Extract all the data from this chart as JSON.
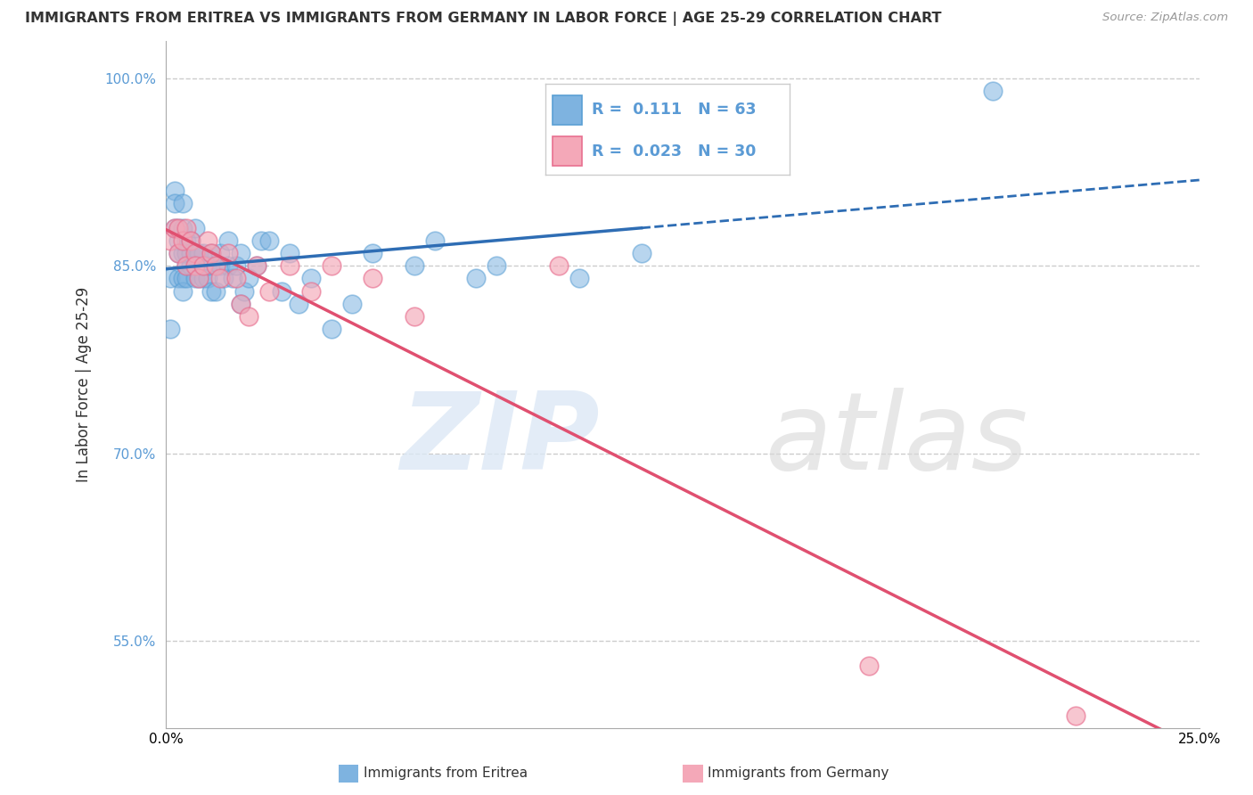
{
  "title": "IMMIGRANTS FROM ERITREA VS IMMIGRANTS FROM GERMANY IN LABOR FORCE | AGE 25-29 CORRELATION CHART",
  "source": "Source: ZipAtlas.com",
  "ylabel": "In Labor Force | Age 25-29",
  "xlim": [
    0.0,
    0.25
  ],
  "ylim": [
    0.48,
    1.03
  ],
  "x_ticks": [
    0.0,
    0.05,
    0.1,
    0.15,
    0.2,
    0.25
  ],
  "x_tick_labels": [
    "0.0%",
    "",
    "",
    "",
    "",
    "25.0%"
  ],
  "y_ticks": [
    0.55,
    0.7,
    0.85,
    1.0
  ],
  "y_tick_labels": [
    "55.0%",
    "70.0%",
    "85.0%",
    "100.0%"
  ],
  "grid_color": "#cccccc",
  "background_color": "#ffffff",
  "eritrea_color": "#7eb3e0",
  "germany_color": "#f4a8b8",
  "eritrea_edge": "#5a9fd4",
  "germany_edge": "#e87090",
  "eritrea_R": 0.111,
  "eritrea_N": 63,
  "germany_R": 0.023,
  "germany_N": 30,
  "eritrea_line_color": "#2e6db4",
  "germany_line_color": "#e05070",
  "eritrea_x": [
    0.001,
    0.001,
    0.002,
    0.002,
    0.002,
    0.003,
    0.003,
    0.003,
    0.003,
    0.004,
    0.004,
    0.004,
    0.004,
    0.004,
    0.005,
    0.005,
    0.005,
    0.005,
    0.006,
    0.006,
    0.006,
    0.007,
    0.007,
    0.007,
    0.007,
    0.008,
    0.008,
    0.009,
    0.009,
    0.01,
    0.01,
    0.011,
    0.011,
    0.012,
    0.012,
    0.013,
    0.013,
    0.014,
    0.015,
    0.015,
    0.016,
    0.017,
    0.018,
    0.018,
    0.019,
    0.02,
    0.022,
    0.023,
    0.025,
    0.028,
    0.03,
    0.032,
    0.035,
    0.04,
    0.045,
    0.05,
    0.06,
    0.065,
    0.075,
    0.08,
    0.1,
    0.115,
    0.2
  ],
  "eritrea_y": [
    0.84,
    0.8,
    0.91,
    0.88,
    0.9,
    0.88,
    0.86,
    0.84,
    0.87,
    0.84,
    0.86,
    0.88,
    0.83,
    0.9,
    0.85,
    0.87,
    0.86,
    0.84,
    0.85,
    0.87,
    0.86,
    0.84,
    0.86,
    0.88,
    0.85,
    0.84,
    0.86,
    0.84,
    0.86,
    0.84,
    0.85,
    0.83,
    0.86,
    0.83,
    0.85,
    0.85,
    0.86,
    0.84,
    0.87,
    0.85,
    0.84,
    0.85,
    0.82,
    0.86,
    0.83,
    0.84,
    0.85,
    0.87,
    0.87,
    0.83,
    0.86,
    0.82,
    0.84,
    0.8,
    0.82,
    0.86,
    0.85,
    0.87,
    0.84,
    0.85,
    0.84,
    0.86,
    0.99
  ],
  "germany_x": [
    0.001,
    0.002,
    0.003,
    0.003,
    0.004,
    0.005,
    0.005,
    0.006,
    0.007,
    0.007,
    0.008,
    0.009,
    0.01,
    0.011,
    0.012,
    0.013,
    0.015,
    0.017,
    0.018,
    0.02,
    0.022,
    0.025,
    0.03,
    0.035,
    0.04,
    0.05,
    0.06,
    0.095,
    0.17,
    0.22
  ],
  "germany_y": [
    0.87,
    0.88,
    0.88,
    0.86,
    0.87,
    0.85,
    0.88,
    0.87,
    0.86,
    0.85,
    0.84,
    0.85,
    0.87,
    0.86,
    0.85,
    0.84,
    0.86,
    0.84,
    0.82,
    0.81,
    0.85,
    0.83,
    0.85,
    0.83,
    0.85,
    0.84,
    0.81,
    0.85,
    0.53,
    0.49
  ]
}
